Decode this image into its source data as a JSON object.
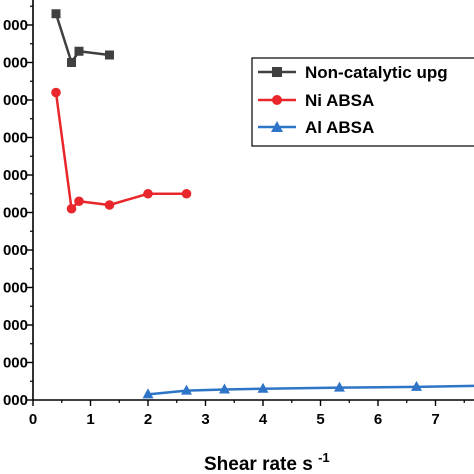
{
  "chart_data": {
    "type": "line",
    "xlabel": "Shear rate s",
    "xlabel_sup": "-1",
    "xlim": [
      0,
      7.8
    ],
    "x_ticks": [
      "0",
      "1",
      "2",
      "3",
      "4",
      "5",
      "6",
      "7"
    ],
    "ylim": [
      0,
      10.7
    ],
    "y_tick_labels_visible": [
      "000",
      "000",
      "000",
      "000",
      "000",
      "000",
      "000",
      "000",
      "000",
      "000",
      "000"
    ],
    "legend_position": "top-right",
    "series": [
      {
        "name": "Non-catalytic upg",
        "color": "#404040",
        "marker": "square",
        "x": [
          0.4,
          0.67,
          0.8,
          1.33
        ],
        "y": [
          10.3,
          9.0,
          9.3,
          9.2
        ]
      },
      {
        "name": "Ni ABSA",
        "color": "#e8262b",
        "marker": "circle",
        "x": [
          0.4,
          0.67,
          0.8,
          1.33,
          2.0,
          2.67
        ],
        "y": [
          8.2,
          5.1,
          5.3,
          5.2,
          5.5,
          5.5
        ]
      },
      {
        "name": "Al ABSA",
        "color": "#2f75c7",
        "marker": "triangle",
        "x": [
          2.0,
          2.67,
          3.33,
          4.0,
          5.33,
          6.67,
          7.8
        ],
        "y": [
          0.15,
          0.25,
          0.28,
          0.3,
          0.33,
          0.35,
          0.38
        ]
      }
    ]
  }
}
